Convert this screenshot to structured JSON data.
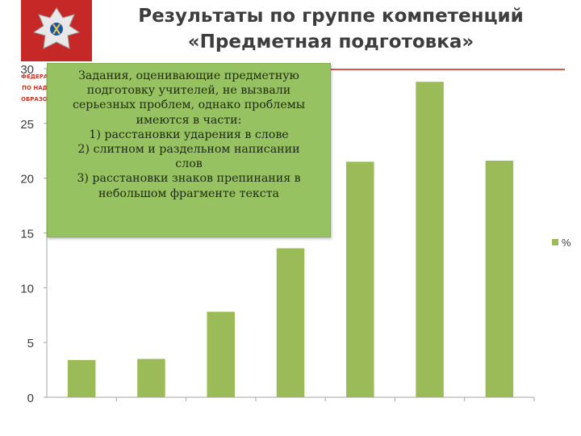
{
  "slide": {
    "title_lines": [
      "Результаты по группе компетенций",
      "«Предметная подготовка»"
    ],
    "logo_caption_lines": [
      "ФЕДЕРАЛ",
      "ПО НАД",
      "ОБРАЗОВ"
    ],
    "accent_color": "#d9534f"
  },
  "callout": {
    "lines": [
      "Задания, оценивающие предметную",
      "подготовку учителей, не вызвали",
      "серьезных проблем, однако проблемы",
      "имеются в части:",
      "1) расстановки ударения в слове",
      "2) слитном и раздельном написании",
      "слов",
      "3) расстановки знаков препинания в",
      "небольшом фрагменте текста"
    ],
    "background": "#97c261"
  },
  "chart_data": {
    "type": "bar",
    "categories": [
      "",
      "",
      "",
      "",
      "",
      "",
      ""
    ],
    "series": [
      {
        "name": "%",
        "values": [
          3.4,
          3.5,
          7.8,
          13.6,
          21.5,
          28.8,
          21.6
        ],
        "color": "#9bbb59"
      }
    ],
    "ylim": [
      0,
      30
    ],
    "yticks": [
      0,
      5,
      10,
      15,
      20,
      25,
      30
    ],
    "grid": false,
    "legend_position": "right"
  }
}
